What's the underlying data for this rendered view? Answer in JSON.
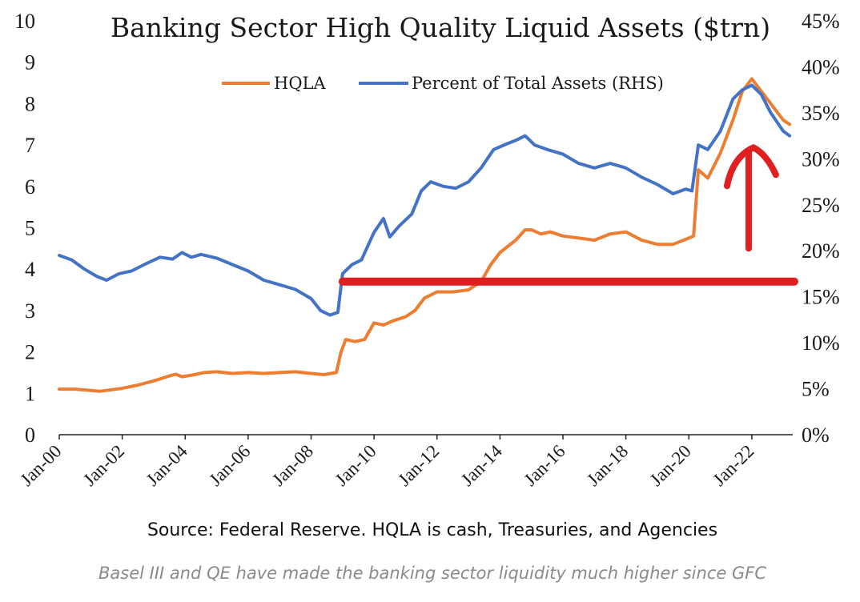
{
  "colors": {
    "hqla": "#ED7D31",
    "percent": "#4472C4",
    "annotation": "#E02020",
    "axis": "#222222"
  },
  "chart_data": {
    "type": "line",
    "title": "Banking Sector High Quality Liquid Assets ($trn)",
    "legend_position": "top-center",
    "grid": false,
    "y_left": {
      "min": 0,
      "max": 10,
      "ticks": [
        "0",
        "1",
        "2",
        "3",
        "4",
        "5",
        "6",
        "7",
        "8",
        "9",
        "10"
      ]
    },
    "y_right": {
      "min": 0,
      "max": 45,
      "ticks": [
        "0%",
        "5%",
        "10%",
        "15%",
        "20%",
        "25%",
        "30%",
        "35%",
        "40%",
        "45%"
      ]
    },
    "x": {
      "min": 2000.0,
      "max": 2023.3,
      "ticks": [
        "Jan-00",
        "Jan-02",
        "Jan-04",
        "Jan-06",
        "Jan-08",
        "Jan-10",
        "Jan-12",
        "Jan-14",
        "Jan-16",
        "Jan-18",
        "Jan-20",
        "Jan-22"
      ]
    },
    "series": [
      {
        "name": "HQLA",
        "axis": "left",
        "points": [
          [
            2000.0,
            1.1
          ],
          [
            2000.5,
            1.1
          ],
          [
            2001.0,
            1.07
          ],
          [
            2001.3,
            1.05
          ],
          [
            2001.6,
            1.08
          ],
          [
            2002.0,
            1.12
          ],
          [
            2002.5,
            1.2
          ],
          [
            2003.0,
            1.3
          ],
          [
            2003.5,
            1.42
          ],
          [
            2003.7,
            1.46
          ],
          [
            2003.9,
            1.4
          ],
          [
            2004.3,
            1.45
          ],
          [
            2004.6,
            1.5
          ],
          [
            2005.0,
            1.52
          ],
          [
            2005.5,
            1.48
          ],
          [
            2006.0,
            1.5
          ],
          [
            2006.5,
            1.48
          ],
          [
            2007.0,
            1.5
          ],
          [
            2007.5,
            1.52
          ],
          [
            2008.0,
            1.48
          ],
          [
            2008.4,
            1.45
          ],
          [
            2008.8,
            1.5
          ],
          [
            2008.95,
            2.0
          ],
          [
            2009.1,
            2.3
          ],
          [
            2009.4,
            2.25
          ],
          [
            2009.7,
            2.3
          ],
          [
            2010.0,
            2.7
          ],
          [
            2010.3,
            2.65
          ],
          [
            2010.6,
            2.75
          ],
          [
            2011.0,
            2.85
          ],
          [
            2011.3,
            3.0
          ],
          [
            2011.6,
            3.3
          ],
          [
            2012.0,
            3.45
          ],
          [
            2012.5,
            3.45
          ],
          [
            2013.0,
            3.5
          ],
          [
            2013.4,
            3.7
          ],
          [
            2013.7,
            4.1
          ],
          [
            2014.0,
            4.4
          ],
          [
            2014.5,
            4.7
          ],
          [
            2014.8,
            4.95
          ],
          [
            2015.0,
            4.95
          ],
          [
            2015.3,
            4.85
          ],
          [
            2015.6,
            4.9
          ],
          [
            2016.0,
            4.8
          ],
          [
            2016.5,
            4.75
          ],
          [
            2017.0,
            4.7
          ],
          [
            2017.5,
            4.85
          ],
          [
            2018.0,
            4.9
          ],
          [
            2018.5,
            4.7
          ],
          [
            2019.0,
            4.6
          ],
          [
            2019.5,
            4.6
          ],
          [
            2020.0,
            4.75
          ],
          [
            2020.15,
            4.8
          ],
          [
            2020.3,
            6.4
          ],
          [
            2020.6,
            6.2
          ],
          [
            2021.0,
            6.8
          ],
          [
            2021.4,
            7.6
          ],
          [
            2021.7,
            8.3
          ],
          [
            2022.0,
            8.6
          ],
          [
            2022.3,
            8.3
          ],
          [
            2022.6,
            8.0
          ],
          [
            2023.0,
            7.6
          ],
          [
            2023.2,
            7.5
          ]
        ]
      },
      {
        "name": "Percent of Total Assets (RHS)",
        "axis": "right",
        "points": [
          [
            2000.0,
            19.5
          ],
          [
            2000.4,
            19.0
          ],
          [
            2000.8,
            18.0
          ],
          [
            2001.2,
            17.2
          ],
          [
            2001.5,
            16.8
          ],
          [
            2001.9,
            17.5
          ],
          [
            2002.3,
            17.8
          ],
          [
            2002.7,
            18.5
          ],
          [
            2003.2,
            19.3
          ],
          [
            2003.6,
            19.1
          ],
          [
            2003.9,
            19.8
          ],
          [
            2004.2,
            19.3
          ],
          [
            2004.5,
            19.6
          ],
          [
            2005.0,
            19.2
          ],
          [
            2005.5,
            18.5
          ],
          [
            2006.0,
            17.8
          ],
          [
            2006.5,
            16.8
          ],
          [
            2007.0,
            16.3
          ],
          [
            2007.5,
            15.8
          ],
          [
            2008.0,
            14.8
          ],
          [
            2008.3,
            13.5
          ],
          [
            2008.6,
            13.0
          ],
          [
            2008.85,
            13.3
          ],
          [
            2009.0,
            17.5
          ],
          [
            2009.3,
            18.5
          ],
          [
            2009.6,
            19.0
          ],
          [
            2010.0,
            22.0
          ],
          [
            2010.3,
            23.5
          ],
          [
            2010.5,
            21.5
          ],
          [
            2010.8,
            22.7
          ],
          [
            2011.2,
            24.0
          ],
          [
            2011.5,
            26.5
          ],
          [
            2011.8,
            27.5
          ],
          [
            2012.2,
            27.0
          ],
          [
            2012.6,
            26.8
          ],
          [
            2013.0,
            27.5
          ],
          [
            2013.4,
            29.0
          ],
          [
            2013.8,
            31.0
          ],
          [
            2014.2,
            31.6
          ],
          [
            2014.5,
            32.0
          ],
          [
            2014.8,
            32.5
          ],
          [
            2015.1,
            31.5
          ],
          [
            2015.5,
            31.0
          ],
          [
            2016.0,
            30.5
          ],
          [
            2016.5,
            29.5
          ],
          [
            2017.0,
            29.0
          ],
          [
            2017.5,
            29.5
          ],
          [
            2018.0,
            29.0
          ],
          [
            2018.5,
            28.0
          ],
          [
            2019.0,
            27.2
          ],
          [
            2019.5,
            26.2
          ],
          [
            2019.9,
            26.7
          ],
          [
            2020.1,
            26.5
          ],
          [
            2020.3,
            31.5
          ],
          [
            2020.6,
            31.0
          ],
          [
            2021.0,
            33.0
          ],
          [
            2021.4,
            36.5
          ],
          [
            2021.7,
            37.5
          ],
          [
            2022.0,
            38.0
          ],
          [
            2022.3,
            37.0
          ],
          [
            2022.6,
            35.0
          ],
          [
            2023.0,
            33.0
          ],
          [
            2023.2,
            32.5
          ]
        ]
      }
    ],
    "annotations": [
      {
        "type": "hline",
        "axis": "left",
        "y": 3.7,
        "x_from": 2009.0,
        "x_to": 2023.5
      },
      {
        "type": "arrow-up",
        "axis": "left",
        "x": 2021.9,
        "y_from": 4.5,
        "y_to": 6.9
      }
    ]
  },
  "footer": {
    "source": "Source: Federal Reserve. HQLA is cash, Treasuries, and Agencies",
    "caption": "Basel III and QE have made the banking sector liquidity much higher since GFC"
  }
}
